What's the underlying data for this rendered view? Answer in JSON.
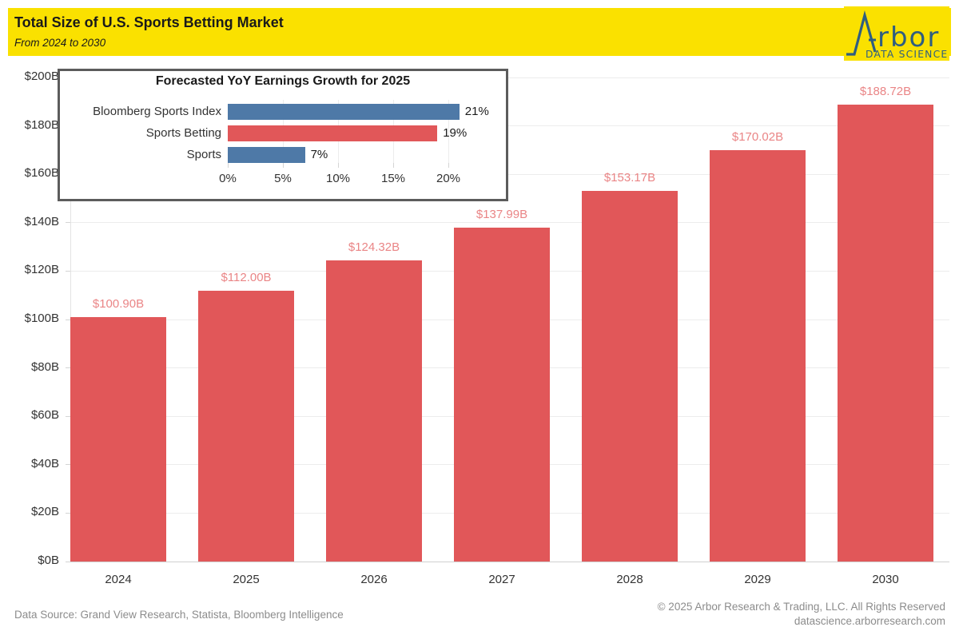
{
  "header": {
    "title": "Total Size of U.S. Sports Betting Market",
    "subtitle": "From 2024 to 2030",
    "banner_color": "#fae100",
    "logo": {
      "name": "Arbor",
      "name_rest": "rbor",
      "tagline": "DATA SCIENCE",
      "color": "#2f5e80"
    }
  },
  "chart_data": [
    {
      "type": "bar",
      "title": "Total Size of U.S. Sports Betting Market",
      "categories": [
        "2024",
        "2025",
        "2026",
        "2027",
        "2028",
        "2029",
        "2030"
      ],
      "values": [
        100.9,
        112.0,
        124.32,
        137.99,
        153.17,
        170.02,
        188.72
      ],
      "labels": [
        "$100.90B",
        "$112.00B",
        "$124.32B",
        "$137.99B",
        "$153.17B",
        "$170.02B",
        "$188.72B"
      ],
      "xlabel": "",
      "ylabel": "",
      "ylim": [
        0,
        200
      ],
      "grid": true,
      "bar_color": "#e15759",
      "label_color": "#ea8586",
      "y_ticks": [
        {
          "value": 0,
          "label": "$0B"
        },
        {
          "value": 20,
          "label": "$20B"
        },
        {
          "value": 40,
          "label": "$40B"
        },
        {
          "value": 60,
          "label": "$60B"
        },
        {
          "value": 80,
          "label": "$80B"
        },
        {
          "value": 100,
          "label": "$100B"
        },
        {
          "value": 120,
          "label": "$120B"
        },
        {
          "value": 140,
          "label": "$140B"
        },
        {
          "value": 160,
          "label": "$160B"
        },
        {
          "value": 180,
          "label": "$180B"
        },
        {
          "value": 200,
          "label": "$200B"
        }
      ]
    },
    {
      "type": "bar",
      "orientation": "horizontal",
      "title": "Forecasted YoY Earnings Growth for 2025",
      "categories": [
        "Bloomberg Sports Index",
        "Sports Betting",
        "Sports"
      ],
      "values": [
        21,
        19,
        7
      ],
      "labels": [
        "21%",
        "19%",
        "7%"
      ],
      "colors": [
        "#4e79a7",
        "#e15759",
        "#4e79a7"
      ],
      "xlim": [
        0,
        22
      ],
      "grid": true,
      "x_ticks": [
        {
          "value": 0,
          "label": "0%"
        },
        {
          "value": 5,
          "label": "5%"
        },
        {
          "value": 10,
          "label": "10%"
        },
        {
          "value": 15,
          "label": "15%"
        },
        {
          "value": 20,
          "label": "20%"
        }
      ]
    }
  ],
  "footer": {
    "source": "Data Source: Grand View Research, Statista, Bloomberg Intelligence",
    "copyright": "© 2025 Arbor Research & Trading, LLC. All Rights Reserved",
    "website": "datascience.arborresearch.com"
  }
}
